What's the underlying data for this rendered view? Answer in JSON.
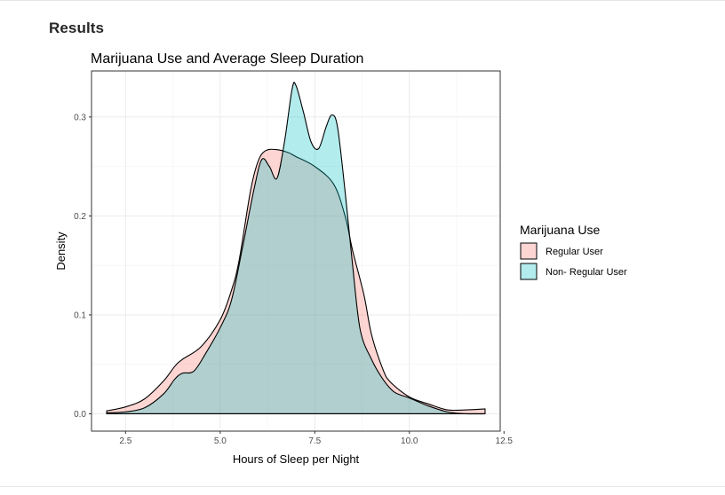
{
  "page": {
    "section_heading": "Results"
  },
  "chart_data": {
    "type": "density",
    "title": "Marijuana Use and Average Sleep Duration",
    "xlabel": "Hours of Sleep per Night",
    "ylabel": "Density",
    "xlim": [
      1.6,
      12.4
    ],
    "ylim": [
      -0.0175,
      0.3465
    ],
    "x_ticks": [
      2.5,
      5.0,
      7.5,
      10.0,
      12.5
    ],
    "x_tick_labels": [
      "2.5",
      "5.0",
      "7.5",
      "10.0",
      "12.5"
    ],
    "y_ticks": [
      0.0,
      0.1,
      0.2,
      0.3
    ],
    "y_tick_labels": [
      "0.0",
      "0.1",
      "0.2",
      "0.3"
    ],
    "grid": true,
    "legend": {
      "title": "Marijuana Use",
      "position": "right",
      "entries": [
        "Regular User",
        "Non- Regular User"
      ]
    },
    "series": [
      {
        "name": "Regular User",
        "fill": "#F8766D",
        "fill_opacity": 0.3,
        "points": [
          [
            2.0,
            0.003
          ],
          [
            2.5,
            0.007
          ],
          [
            3.0,
            0.015
          ],
          [
            3.5,
            0.033
          ],
          [
            3.8,
            0.048
          ],
          [
            4.0,
            0.055
          ],
          [
            4.5,
            0.068
          ],
          [
            5.0,
            0.095
          ],
          [
            5.3,
            0.125
          ],
          [
            5.5,
            0.155
          ],
          [
            5.8,
            0.225
          ],
          [
            6.0,
            0.255
          ],
          [
            6.2,
            0.266
          ],
          [
            6.5,
            0.267
          ],
          [
            6.8,
            0.264
          ],
          [
            7.0,
            0.26
          ],
          [
            7.5,
            0.25
          ],
          [
            8.0,
            0.232
          ],
          [
            8.3,
            0.2
          ],
          [
            8.5,
            0.165
          ],
          [
            8.8,
            0.12
          ],
          [
            9.0,
            0.08
          ],
          [
            9.3,
            0.045
          ],
          [
            9.5,
            0.032
          ],
          [
            10.0,
            0.017
          ],
          [
            10.5,
            0.01
          ],
          [
            11.0,
            0.004
          ],
          [
            11.5,
            0.004
          ],
          [
            12.0,
            0.005
          ]
        ]
      },
      {
        "name": "Non- Regular User",
        "fill": "#00BFC4",
        "fill_opacity": 0.3,
        "points": [
          [
            2.0,
            0.001
          ],
          [
            2.5,
            0.002
          ],
          [
            3.0,
            0.006
          ],
          [
            3.5,
            0.02
          ],
          [
            3.8,
            0.035
          ],
          [
            4.0,
            0.041
          ],
          [
            4.3,
            0.043
          ],
          [
            4.6,
            0.06
          ],
          [
            5.0,
            0.087
          ],
          [
            5.3,
            0.115
          ],
          [
            5.6,
            0.17
          ],
          [
            5.9,
            0.228
          ],
          [
            6.1,
            0.257
          ],
          [
            6.3,
            0.25
          ],
          [
            6.5,
            0.238
          ],
          [
            6.7,
            0.275
          ],
          [
            6.9,
            0.328
          ],
          [
            7.0,
            0.332
          ],
          [
            7.2,
            0.305
          ],
          [
            7.4,
            0.275
          ],
          [
            7.6,
            0.268
          ],
          [
            7.8,
            0.29
          ],
          [
            7.95,
            0.302
          ],
          [
            8.1,
            0.29
          ],
          [
            8.3,
            0.225
          ],
          [
            8.5,
            0.15
          ],
          [
            8.7,
            0.085
          ],
          [
            9.0,
            0.055
          ],
          [
            9.3,
            0.035
          ],
          [
            9.6,
            0.022
          ],
          [
            10.0,
            0.016
          ],
          [
            10.5,
            0.008
          ],
          [
            11.0,
            0.002
          ],
          [
            11.5,
            0.0
          ],
          [
            12.0,
            0.0
          ]
        ]
      }
    ]
  }
}
